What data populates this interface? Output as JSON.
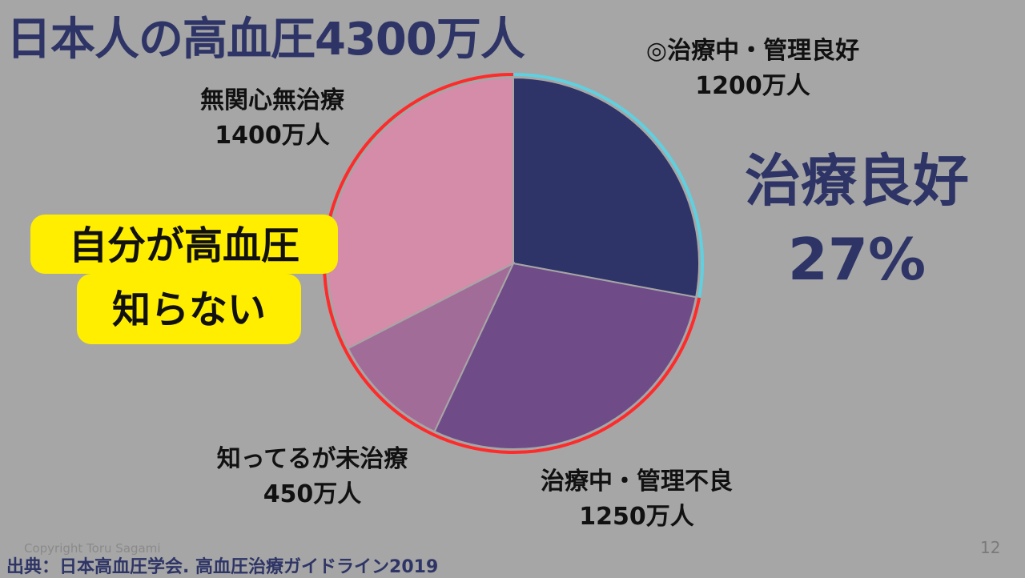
{
  "slide": {
    "title": "日本人の高血圧4300万人",
    "good_rate_label": "治療良好",
    "good_rate_value": "27%",
    "callout_line1": "自分が高血圧",
    "callout_line2": "知らない",
    "copyright": "Copyright Toru Sagami",
    "source": "出典：日本高血圧学会. 高血圧治療ガイドライン2019",
    "page_number": "12"
  },
  "labels": {
    "good": {
      "name": "◎治療中・管理良好",
      "value": "1200万人"
    },
    "none": {
      "name": "無関心無治療",
      "value": "1400万人"
    },
    "known": {
      "name": "知ってるが未治療",
      "value": "450万人"
    },
    "poor": {
      "name": "治療中・管理不良",
      "value": "1250万人"
    }
  },
  "chart_data": {
    "type": "pie",
    "categories": [
      "◎治療中・管理良好",
      "治療中・管理不良",
      "知ってるが未治療",
      "無関心無治療"
    ],
    "values": [
      1200,
      1250,
      450,
      1400
    ],
    "unit": "万人",
    "colors": [
      "#2e3468",
      "#6f4c88",
      "#a26c98",
      "#d48ca8"
    ],
    "outline_colors": {
      "good": "#5fd0e0",
      "others": "#ff2a2a"
    }
  }
}
